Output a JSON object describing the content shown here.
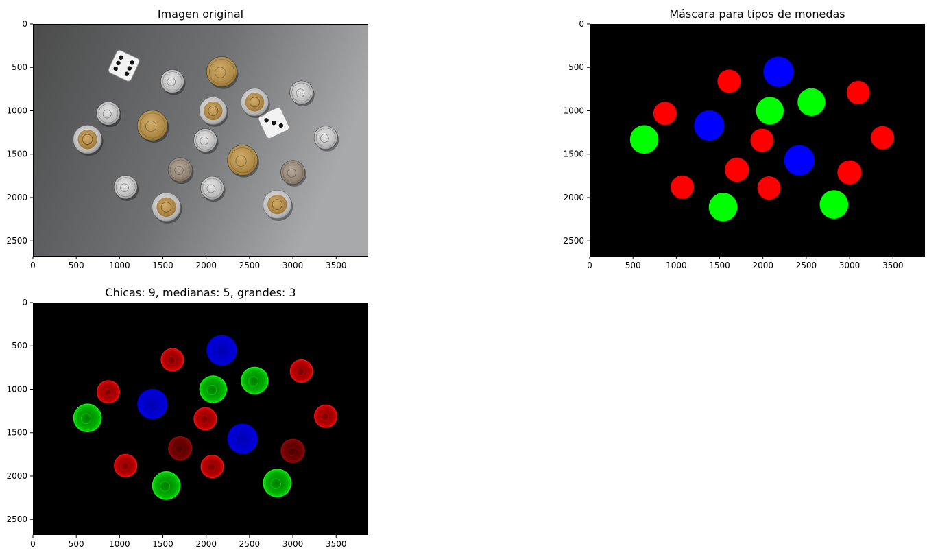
{
  "panels": [
    {
      "id": "original",
      "title": "Imagen original",
      "xticks": [
        "0",
        "500",
        "1000",
        "1500",
        "2000",
        "2500",
        "3000",
        "3500"
      ],
      "yticks": [
        "0",
        "500",
        "1000",
        "1500",
        "2000",
        "2500"
      ]
    },
    {
      "id": "mask",
      "title": "Máscara para tipos de monedas",
      "xticks": [
        "0",
        "500",
        "1000",
        "1500",
        "2000",
        "2500",
        "3000",
        "3500"
      ],
      "yticks": [
        "0",
        "500",
        "1000",
        "1500",
        "2000",
        "2500"
      ]
    },
    {
      "id": "overlay",
      "title": "Chicas: 9, medianas: 5, grandes: 3",
      "xticks": [
        "0",
        "500",
        "1000",
        "1500",
        "2000",
        "2500",
        "3000",
        "3500"
      ],
      "yticks": [
        "0",
        "500",
        "1000",
        "1500",
        "2000",
        "2500"
      ]
    }
  ],
  "colors": {
    "small": "#ff0000",
    "medium": "#00ff00",
    "large": "#0000ff",
    "background_mask": "#000000"
  },
  "image": {
    "width": 3870,
    "height": 2680,
    "dice": [
      {
        "x": 1050,
        "y": 480,
        "angle": 25
      },
      {
        "x": 2780,
        "y": 1140,
        "angle": -25
      }
    ],
    "coins": [
      {
        "x": 2180,
        "y": 550,
        "size": "large",
        "tone": "gold",
        "r": 175
      },
      {
        "x": 1380,
        "y": 1170,
        "size": "large",
        "tone": "gold",
        "r": 175
      },
      {
        "x": 2420,
        "y": 1570,
        "size": "large",
        "tone": "gold",
        "r": 175
      },
      {
        "x": 2080,
        "y": 1000,
        "size": "medium",
        "tone": "bimetal",
        "r": 160
      },
      {
        "x": 2560,
        "y": 900,
        "size": "medium",
        "tone": "bimetal",
        "r": 160
      },
      {
        "x": 630,
        "y": 1330,
        "size": "medium",
        "tone": "bimetal",
        "r": 165
      },
      {
        "x": 1540,
        "y": 2110,
        "size": "medium",
        "tone": "bimetal",
        "r": 165
      },
      {
        "x": 2820,
        "y": 2080,
        "size": "medium",
        "tone": "bimetal",
        "r": 165
      },
      {
        "x": 1610,
        "y": 660,
        "size": "small",
        "tone": "silver",
        "r": 135
      },
      {
        "x": 3100,
        "y": 790,
        "size": "small",
        "tone": "silver",
        "r": 135
      },
      {
        "x": 870,
        "y": 1030,
        "size": "small",
        "tone": "silver",
        "r": 135
      },
      {
        "x": 3380,
        "y": 1310,
        "size": "small",
        "tone": "silver",
        "r": 135
      },
      {
        "x": 1990,
        "y": 1340,
        "size": "small",
        "tone": "silver",
        "r": 135
      },
      {
        "x": 1700,
        "y": 1680,
        "size": "small",
        "tone": "copper",
        "r": 140
      },
      {
        "x": 3000,
        "y": 1710,
        "size": "small",
        "tone": "copper",
        "r": 140
      },
      {
        "x": 1070,
        "y": 1880,
        "size": "small",
        "tone": "silver",
        "r": 135
      },
      {
        "x": 2070,
        "y": 1890,
        "size": "small",
        "tone": "silver",
        "r": 135
      }
    ]
  }
}
